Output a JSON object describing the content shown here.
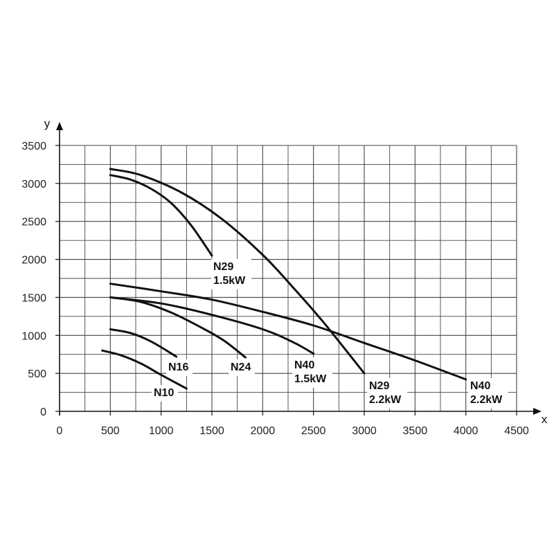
{
  "chart_data": {
    "type": "line",
    "title": "",
    "xlabel": "x",
    "ylabel": "y",
    "xlim": [
      0,
      4500
    ],
    "ylim": [
      0,
      3500
    ],
    "x_ticks": [
      0,
      500,
      1000,
      1500,
      2000,
      2500,
      3000,
      3500,
      4000,
      4500
    ],
    "y_ticks": [
      0,
      500,
      1000,
      1500,
      2000,
      2500,
      3000,
      3500
    ],
    "grid": true,
    "series": [
      {
        "name": "N10",
        "label_lines": [
          "N10"
        ],
        "points": [
          [
            420,
            800
          ],
          [
            600,
            740
          ],
          [
            800,
            630
          ],
          [
            1000,
            480
          ],
          [
            1250,
            300
          ]
        ]
      },
      {
        "name": "N16",
        "label_lines": [
          "N16"
        ],
        "points": [
          [
            500,
            1080
          ],
          [
            700,
            1030
          ],
          [
            900,
            920
          ],
          [
            1150,
            720
          ]
        ]
      },
      {
        "name": "N24",
        "label_lines": [
          "N24"
        ],
        "points": [
          [
            500,
            1500
          ],
          [
            800,
            1440
          ],
          [
            1100,
            1300
          ],
          [
            1400,
            1100
          ],
          [
            1620,
            930
          ],
          [
            1830,
            710
          ]
        ]
      },
      {
        "name": "N40 1.5kW",
        "label_lines": [
          "N40",
          "1.5kW"
        ],
        "points": [
          [
            500,
            1500
          ],
          [
            1000,
            1420
          ],
          [
            1500,
            1270
          ],
          [
            2000,
            1080
          ],
          [
            2300,
            910
          ],
          [
            2500,
            760
          ]
        ]
      },
      {
        "name": "N29 1.5kW",
        "label_lines": [
          "N29",
          "1.5kW"
        ],
        "points": [
          [
            500,
            3110
          ],
          [
            700,
            3050
          ],
          [
            900,
            2930
          ],
          [
            1100,
            2740
          ],
          [
            1300,
            2440
          ],
          [
            1500,
            2050
          ]
        ]
      },
      {
        "name": "N29 2.2kW",
        "label_lines": [
          "N29",
          "2.2kW"
        ],
        "points": [
          [
            500,
            3190
          ],
          [
            800,
            3110
          ],
          [
            1200,
            2880
          ],
          [
            1600,
            2530
          ],
          [
            2000,
            2060
          ],
          [
            2300,
            1630
          ],
          [
            2600,
            1170
          ],
          [
            3000,
            500
          ]
        ]
      },
      {
        "name": "N40 2.2kW",
        "label_lines": [
          "N40",
          "2.2kW"
        ],
        "points": [
          [
            500,
            1680
          ],
          [
            1000,
            1580
          ],
          [
            1500,
            1470
          ],
          [
            2000,
            1310
          ],
          [
            2500,
            1130
          ],
          [
            3000,
            900
          ],
          [
            3500,
            670
          ],
          [
            4000,
            420
          ]
        ]
      }
    ]
  }
}
